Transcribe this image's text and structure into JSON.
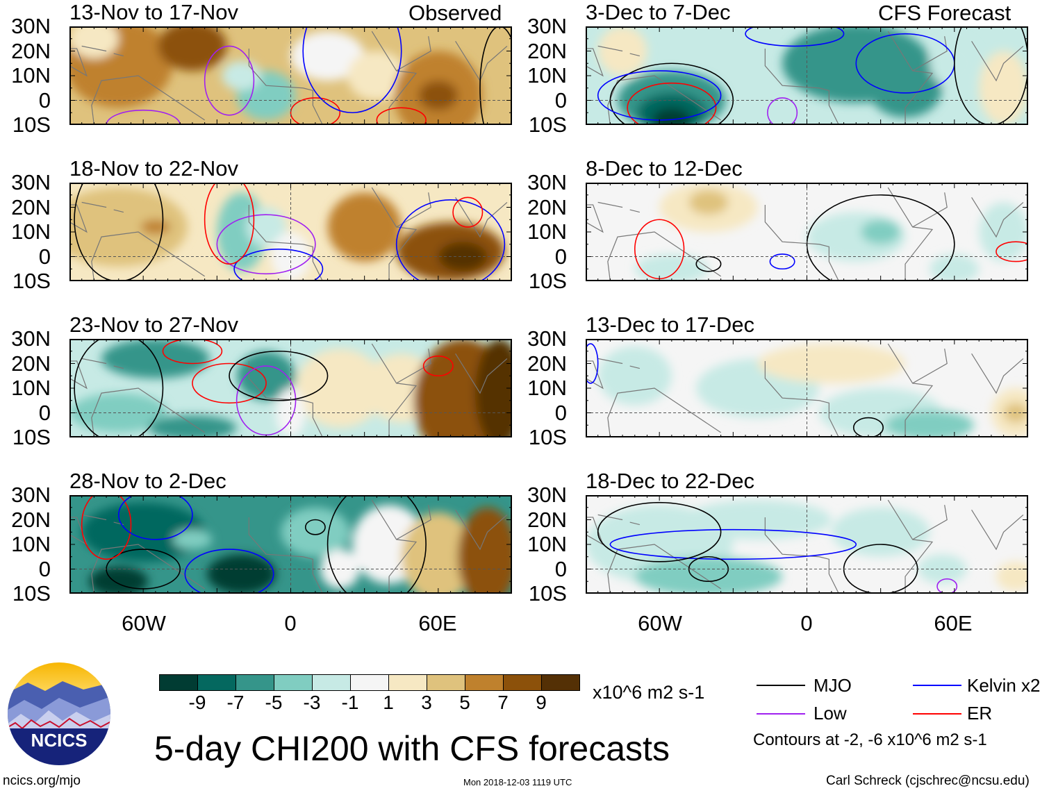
{
  "figure": {
    "title": "5-day CHI200 with CFS forecasts",
    "timestamp": "Mon 2018-12-03 1119 UTC",
    "url": "ncics.org/mjo",
    "author": "Carl Schreck (cjschrec@ncsu.edu)",
    "logo_text": "NCICS"
  },
  "columns": {
    "observed_label": "Observed",
    "forecast_label": "CFS Forecast"
  },
  "panels": {
    "observed": [
      {
        "title": "13-Nov to 17-Nov"
      },
      {
        "title": "18-Nov to 22-Nov"
      },
      {
        "title": "23-Nov to 27-Nov"
      },
      {
        "title": "28-Nov to 2-Dec"
      }
    ],
    "forecast": [
      {
        "title": "3-Dec to 7-Dec"
      },
      {
        "title": "8-Dec to 12-Dec"
      },
      {
        "title": "13-Dec to 17-Dec"
      },
      {
        "title": "18-Dec to 22-Dec"
      }
    ]
  },
  "axes": {
    "lat_labels": [
      "30N",
      "20N",
      "10N",
      "0",
      "10S"
    ],
    "lon_labels": [
      "60W",
      "0",
      "60E"
    ],
    "lon_range": [
      -90,
      90
    ],
    "lat_range": [
      -10,
      30
    ]
  },
  "colorbar": {
    "units": "x10^6 m2 s-1",
    "tick_labels": [
      "-9",
      "-7",
      "-5",
      "-3",
      "-1",
      "1",
      "3",
      "5",
      "7",
      "9"
    ],
    "colors": [
      "#013c33",
      "#04685f",
      "#35958a",
      "#80cdc1",
      "#c7eae5",
      "#f5f5f5",
      "#f6e8c3",
      "#dfc27d",
      "#bf812d",
      "#8c510a",
      "#543005"
    ]
  },
  "legend": {
    "items": [
      {
        "label": "MJO",
        "color": "#000000"
      },
      {
        "label": "Kelvin x2",
        "color": "#0000ff"
      },
      {
        "label": "Low",
        "color": "#a020f0"
      },
      {
        "label": "ER",
        "color": "#ff0000"
      }
    ],
    "note": "Contours at -2, -6 x10^6 m2 s-1"
  }
}
